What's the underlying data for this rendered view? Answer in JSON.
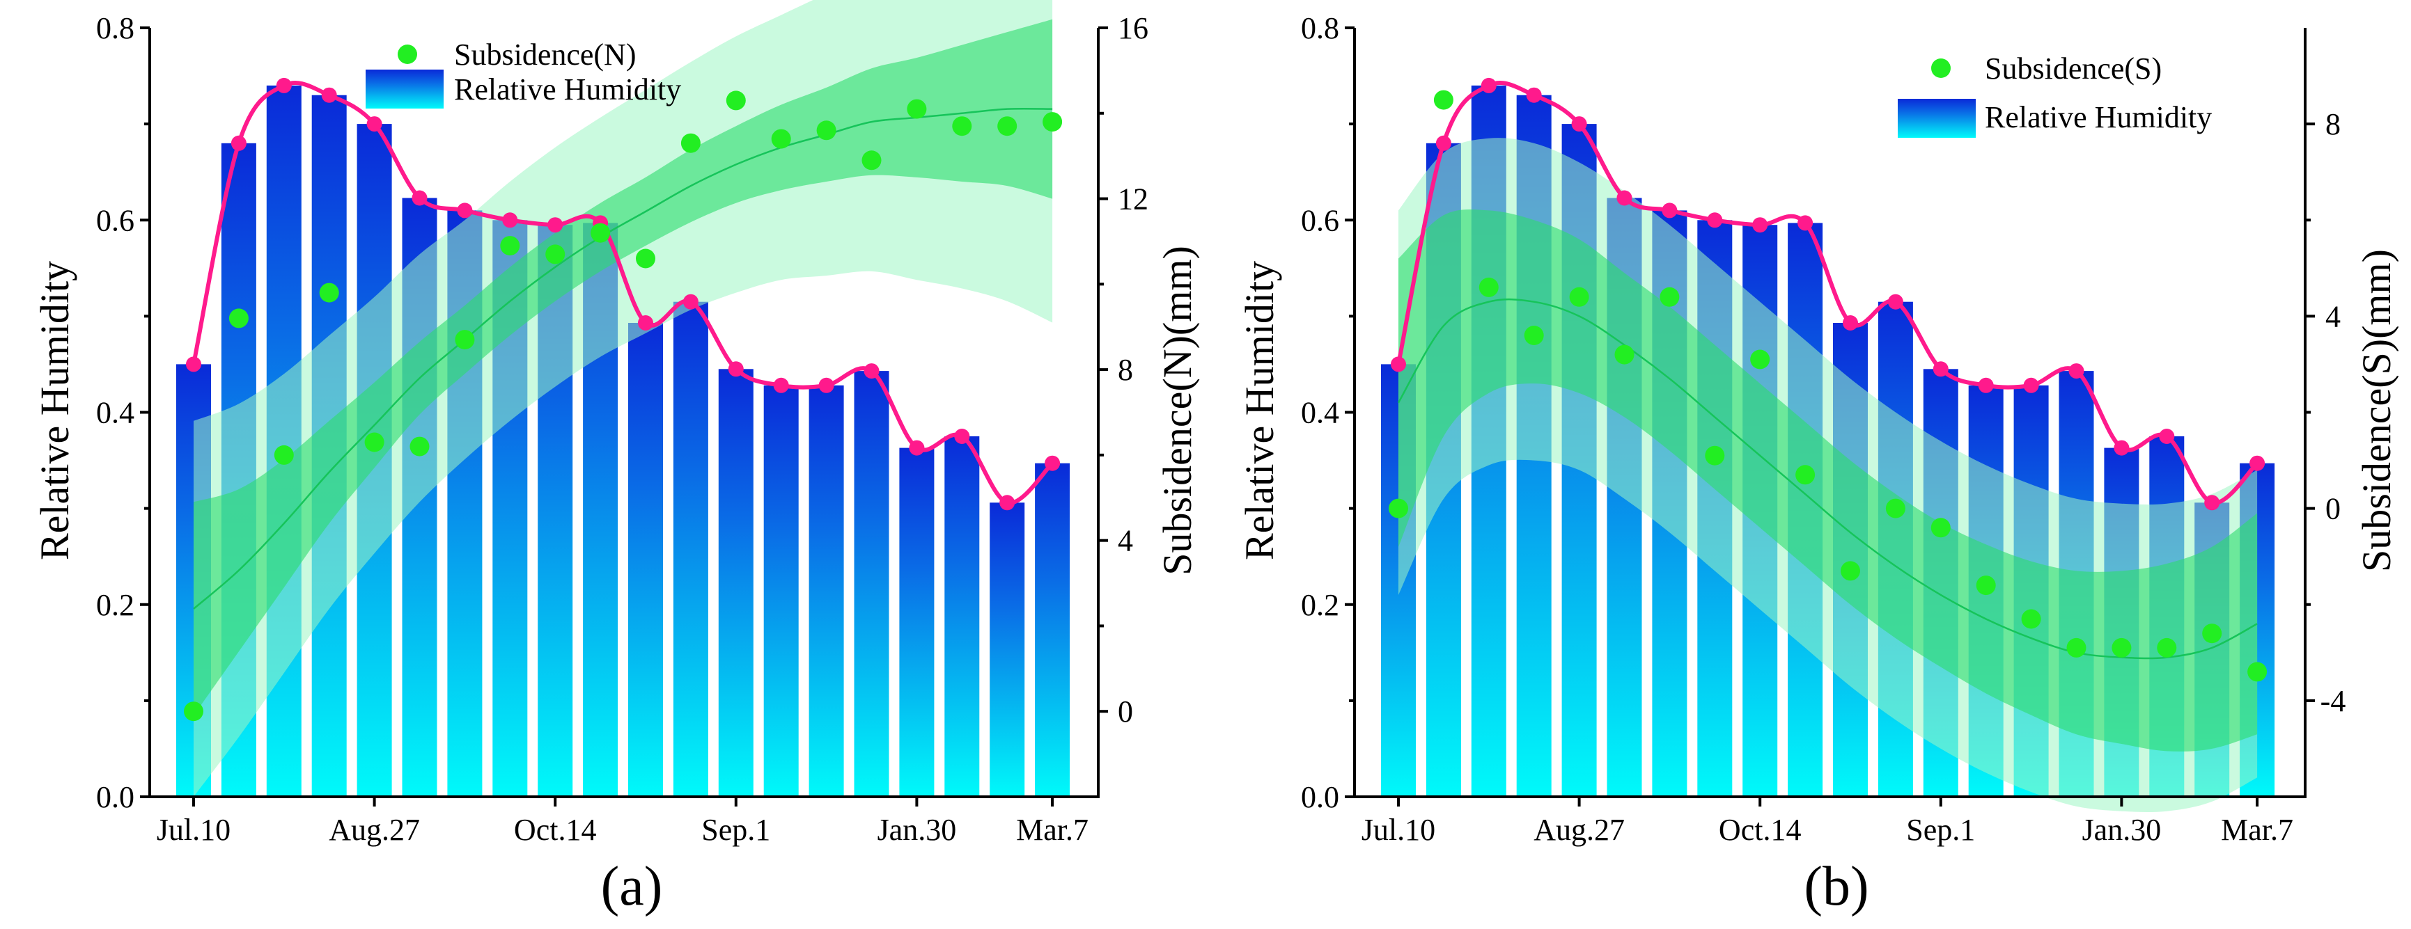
{
  "colors": {
    "bar_top": "#0a2ad8",
    "bar_bottom": "#00fafa",
    "rh_line": "#ff1a8c",
    "subsidence_point": "#22ee22",
    "fit_line": "#16c45a",
    "confidence_band": "#2ddc6e",
    "prediction_band": "#9ff5c4"
  },
  "chart_data": [
    {
      "panel_label": "(a)",
      "type": "bar",
      "categories": [
        "Jul.10",
        "",
        "",
        "",
        "Aug.27",
        "",
        "",
        "",
        "Oct.14",
        "",
        "",
        "",
        "Sep.1",
        "",
        "",
        "",
        "Jan.30",
        "",
        "",
        "Mar.7"
      ],
      "x_tick_labels": [
        "Jul.10",
        "Aug.27",
        "Oct.14",
        "Sep.1",
        "Jan.30",
        "Mar.7"
      ],
      "series": [
        {
          "name": "Relative Humidity",
          "axis": "left",
          "kind": "bar+line",
          "values": [
            0.45,
            0.68,
            0.74,
            0.73,
            0.7,
            0.623,
            0.61,
            0.6,
            0.595,
            0.597,
            0.493,
            0.515,
            0.445,
            0.428,
            0.428,
            0.443,
            0.363,
            0.375,
            0.306,
            0.347
          ]
        },
        {
          "name": "Subsidence(N)",
          "axis": "right",
          "kind": "scatter",
          "values": [
            0.0,
            9.2,
            6.0,
            9.8,
            6.3,
            6.2,
            8.7,
            10.9,
            10.7,
            11.2,
            10.6,
            13.3,
            14.3,
            13.4,
            13.6,
            12.9,
            14.1,
            13.7,
            13.7,
            13.8
          ]
        }
      ],
      "fit": {
        "line": [
          2.4,
          3.3,
          4.4,
          5.6,
          6.7,
          7.8,
          8.7,
          9.6,
          10.4,
          11.1,
          11.7,
          12.3,
          12.8,
          13.2,
          13.5,
          13.8,
          13.9,
          14.0,
          14.1,
          14.1
        ],
        "ci_width": [
          2.5,
          1.9,
          1.5,
          1.2,
          1.0,
          0.85,
          0.8,
          0.8,
          0.8,
          0.8,
          0.8,
          0.85,
          0.9,
          1.0,
          1.1,
          1.25,
          1.4,
          1.6,
          1.8,
          2.1
        ],
        "pi_width": [
          4.4,
          3.9,
          3.5,
          3.2,
          3.0,
          2.9,
          2.8,
          2.8,
          2.8,
          2.8,
          2.85,
          2.9,
          3.0,
          3.1,
          3.3,
          3.5,
          3.8,
          4.1,
          4.5,
          5.0
        ]
      },
      "left_axis": {
        "title": "Relative Humidity",
        "min": 0,
        "max": 0.8,
        "ticks": [
          "0.0",
          "0.2",
          "0.4",
          "0.6",
          "0.8"
        ]
      },
      "right_axis": {
        "title": "Subsidence(N)(mm)",
        "min": -2,
        "max": 16,
        "ticks": [
          "0",
          "4",
          "8",
          "12",
          "16"
        ]
      },
      "legend": [
        {
          "label": "Subsidence(N)",
          "kind": "point"
        },
        {
          "label": "Relative Humidity",
          "kind": "bar"
        }
      ],
      "legend_position": "top-left"
    },
    {
      "panel_label": "(b)",
      "type": "bar",
      "categories": [
        "Jul.10",
        "",
        "",
        "",
        "Aug.27",
        "",
        "",
        "",
        "Oct.14",
        "",
        "",
        "",
        "Sep.1",
        "",
        "",
        "",
        "Jan.30",
        "",
        "",
        "Mar.7"
      ],
      "x_tick_labels": [
        "Jul.10",
        "Aug.27",
        "Oct.14",
        "Sep.1",
        "Jan.30",
        "Mar.7"
      ],
      "series": [
        {
          "name": "Relative Humidity",
          "axis": "left",
          "kind": "bar+line",
          "values": [
            0.45,
            0.68,
            0.74,
            0.73,
            0.7,
            0.623,
            0.61,
            0.6,
            0.595,
            0.597,
            0.493,
            0.515,
            0.445,
            0.428,
            0.428,
            0.443,
            0.363,
            0.375,
            0.306,
            0.347
          ]
        },
        {
          "name": "Subsidence(S)",
          "axis": "right",
          "kind": "scatter",
          "values": [
            0.0,
            8.5,
            4.6,
            3.6,
            4.4,
            3.2,
            4.4,
            1.1,
            3.1,
            0.7,
            -1.3,
            0.0,
            -0.4,
            -1.6,
            -2.3,
            -2.9,
            -2.9,
            -2.9,
            -2.6,
            -3.4
          ]
        }
      ],
      "fit": {
        "line": [
          2.2,
          3.8,
          4.3,
          4.3,
          4.0,
          3.4,
          2.7,
          1.9,
          1.1,
          0.3,
          -0.5,
          -1.2,
          -1.8,
          -2.3,
          -2.7,
          -3.0,
          -3.1,
          -3.1,
          -2.9,
          -2.4
        ],
        "ci_width": [
          3.0,
          2.3,
          1.9,
          1.7,
          1.6,
          1.5,
          1.5,
          1.5,
          1.5,
          1.5,
          1.5,
          1.5,
          1.5,
          1.55,
          1.6,
          1.7,
          1.8,
          1.95,
          2.1,
          2.3
        ],
        "pi_width": [
          4.0,
          3.6,
          3.4,
          3.3,
          3.2,
          3.2,
          3.2,
          3.2,
          3.2,
          3.2,
          3.2,
          3.2,
          3.2,
          3.2,
          3.2,
          3.2,
          3.2,
          3.2,
          3.2,
          3.2
        ]
      },
      "left_axis": {
        "title": "Relative Humidity",
        "min": 0,
        "max": 0.8,
        "ticks": [
          "0.0",
          "0.2",
          "0.4",
          "0.6",
          "0.8"
        ]
      },
      "right_axis": {
        "title": "Subsidence(S)(mm)",
        "min": -6,
        "max": 10,
        "ticks": [
          "-4",
          "0",
          "4",
          "8"
        ]
      },
      "legend": [
        {
          "label": "Subsidence(S)",
          "kind": "point"
        },
        {
          "label": "Relative Humidity",
          "kind": "bar"
        }
      ],
      "legend_position": "top-right"
    }
  ]
}
